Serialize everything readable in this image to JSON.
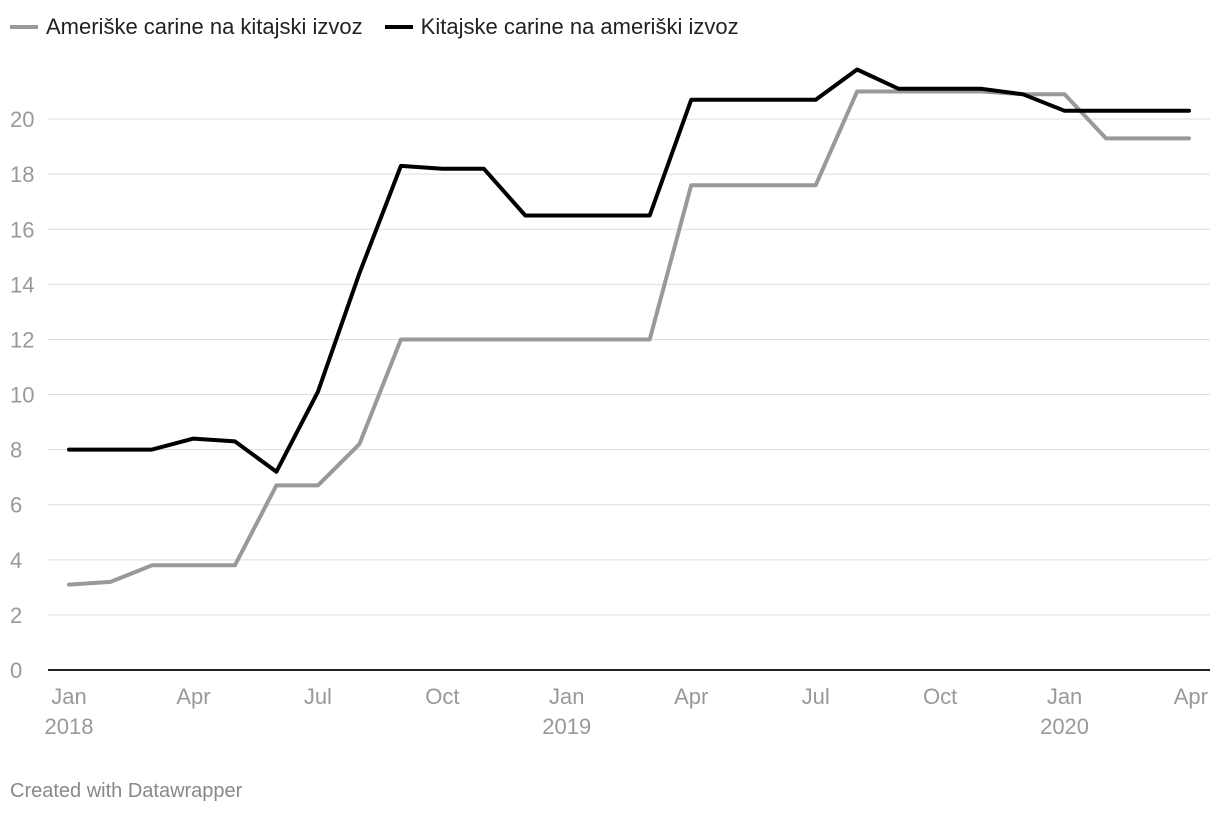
{
  "chart_data": {
    "type": "line",
    "title": "",
    "xlabel": "",
    "ylabel": "",
    "ylim": [
      0,
      22
    ],
    "yticks": [
      0,
      2,
      4,
      6,
      8,
      10,
      12,
      14,
      16,
      18,
      20
    ],
    "grid": true,
    "legend_position": "top-left",
    "x_ticks": [
      {
        "index": 0,
        "label": "Jan",
        "year": "2018"
      },
      {
        "index": 3,
        "label": "Apr",
        "year": ""
      },
      {
        "index": 6,
        "label": "Jul",
        "year": ""
      },
      {
        "index": 9,
        "label": "Oct",
        "year": ""
      },
      {
        "index": 12,
        "label": "Jan",
        "year": "2019"
      },
      {
        "index": 15,
        "label": "Apr",
        "year": ""
      },
      {
        "index": 18,
        "label": "Jul",
        "year": ""
      },
      {
        "index": 21,
        "label": "Oct",
        "year": ""
      },
      {
        "index": 24,
        "label": "Jan",
        "year": "2020"
      },
      {
        "index": 27,
        "label": "Apr",
        "year": ""
      }
    ],
    "x": [
      "2018-01",
      "2018-02",
      "2018-03",
      "2018-04",
      "2018-05",
      "2018-06",
      "2018-07",
      "2018-08",
      "2018-09",
      "2018-10",
      "2018-11",
      "2018-12",
      "2019-01",
      "2019-02",
      "2019-03",
      "2019-04",
      "2019-05",
      "2019-06",
      "2019-07",
      "2019-08",
      "2019-09",
      "2019-10",
      "2019-11",
      "2019-12",
      "2020-01",
      "2020-02",
      "2020-03",
      "2020-04"
    ],
    "series": [
      {
        "name": "Ameriške carine na kitajski izvoz",
        "color": "#999999",
        "values": [
          3.1,
          3.2,
          3.8,
          3.8,
          3.8,
          6.7,
          6.7,
          8.2,
          12.0,
          12.0,
          12.0,
          12.0,
          12.0,
          12.0,
          12.0,
          17.6,
          17.6,
          17.6,
          17.6,
          21.0,
          21.0,
          21.0,
          21.0,
          20.9,
          20.9,
          19.3,
          19.3,
          19.3
        ]
      },
      {
        "name": "Kitajske carine na ameriški izvoz",
        "color": "#000000",
        "values": [
          8.0,
          8.0,
          8.0,
          8.4,
          8.3,
          7.2,
          10.1,
          14.4,
          18.3,
          18.2,
          18.2,
          16.5,
          16.5,
          16.5,
          16.5,
          20.7,
          20.7,
          20.7,
          20.7,
          21.8,
          21.1,
          21.1,
          21.1,
          20.9,
          20.3,
          20.3,
          20.3,
          20.3
        ]
      }
    ]
  },
  "credit": "Created with Datawrapper"
}
